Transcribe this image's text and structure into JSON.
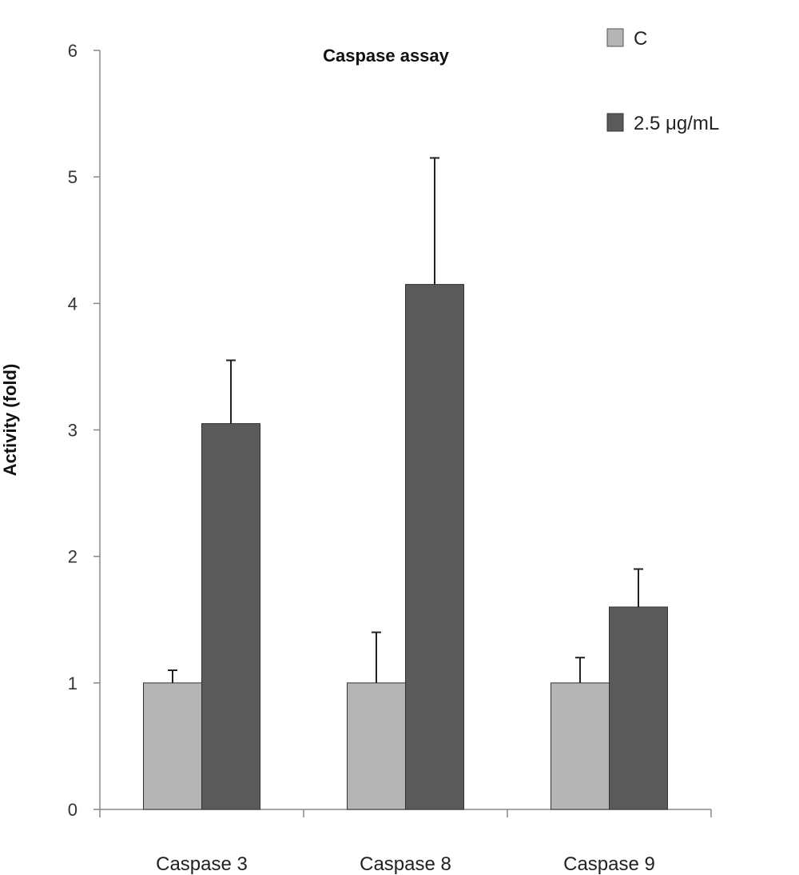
{
  "chart_data": {
    "type": "bar",
    "title": "Caspase assay",
    "xlabel": "",
    "ylabel": "Activity (fold)",
    "ylim": [
      0,
      6
    ],
    "yticks": [
      "0",
      "1",
      "2",
      "3",
      "4",
      "5",
      "6"
    ],
    "categories": [
      "Caspase 3",
      "Caspase 8",
      "Caspase 9"
    ],
    "series": [
      {
        "name": "C",
        "color": "#b5b5b5",
        "values": [
          1.0,
          1.0,
          1.0
        ],
        "errors": [
          0.1,
          0.4,
          0.2
        ]
      },
      {
        "name": "2.5 μg/mL",
        "color": "#5a5a5a",
        "values": [
          3.05,
          4.15,
          1.6
        ],
        "errors": [
          0.5,
          1.0,
          0.3
        ]
      }
    ],
    "legend_position": "top-right",
    "grid": false
  }
}
